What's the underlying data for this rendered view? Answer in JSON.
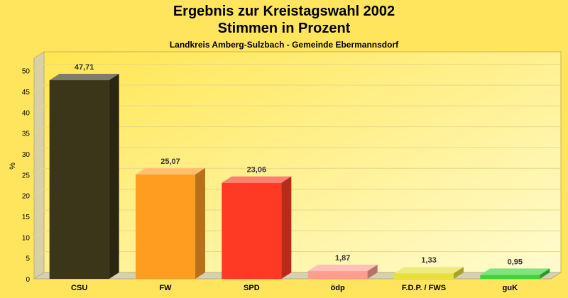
{
  "chart_data": {
    "type": "bar",
    "title": "Ergebnis zur Kreistagswahl 2002",
    "subtitle_line": "Stimmen in Prozent",
    "subtitle": "Landkreis Amberg-Sulzbach - Gemeinde Ebermannsdorf",
    "ylabel": "%",
    "xlabel": "",
    "ylim": [
      0,
      53
    ],
    "yticks": [
      "0",
      "5",
      "10",
      "15",
      "20",
      "25",
      "30",
      "35",
      "40",
      "45",
      "50"
    ],
    "grid": true,
    "categories": [
      "CSU",
      "FW",
      "SPD",
      "ödp",
      "F.D.P. / FWS",
      "guK"
    ],
    "values": [
      47.71,
      25.07,
      23.06,
      1.87,
      1.33,
      0.95
    ],
    "value_labels": [
      "47,71",
      "25,07",
      "23,06",
      "1,87",
      "1,33",
      "0,95"
    ],
    "colors": [
      "#3b3519",
      "#ff9d21",
      "#ff3a24",
      "#ff9e8f",
      "#e8e03a",
      "#3dd43a"
    ]
  }
}
